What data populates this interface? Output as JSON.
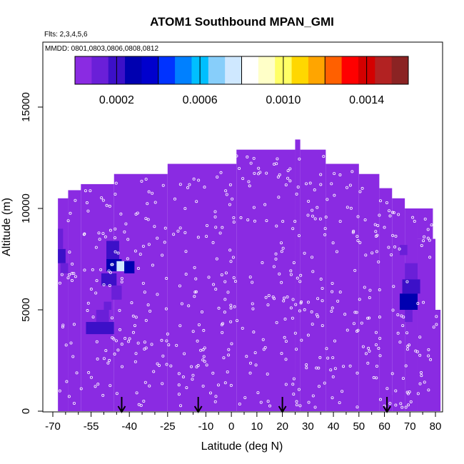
{
  "chart_data": {
    "type": "heatmap",
    "title": "ATOM1 Southbound MPAN_GMI",
    "subtitle_flights": "Flts: 2,3,4,5,6",
    "subtitle_dates": "MMDD: 0801,0803,0806,0808,0812",
    "xlabel": "Latitude (deg N)",
    "ylabel": "Altitude (m)",
    "xlim": [
      -70,
      85
    ],
    "ylim": [
      0,
      17500
    ],
    "xticks": [
      -70,
      -55,
      -40,
      -25,
      -10,
      0,
      10,
      20,
      30,
      40,
      50,
      60,
      70,
      80
    ],
    "xticklabels": [
      "-70",
      "-55",
      "-40",
      "-25",
      "-10",
      "0",
      "10",
      "20",
      "30",
      "40",
      "50",
      "60",
      "70",
      "80"
    ],
    "xminor": [
      -65,
      -60,
      -50,
      -45,
      -35,
      -30,
      -20,
      -15,
      -5,
      5,
      15,
      25,
      35,
      45,
      55,
      65,
      75,
      85
    ],
    "yticks": [
      0,
      5000,
      10000,
      15000
    ],
    "yticklabels": [
      "0",
      "5000",
      "10000",
      "15000"
    ],
    "colorbar": {
      "min": 0.0,
      "max": 0.0016,
      "ticks": [
        0.0002,
        0.0006,
        0.001,
        0.0014
      ],
      "ticklabels": [
        "0.0002",
        "0.0006",
        "0.0010",
        "0.0014"
      ],
      "gridlines": [
        0.0004,
        0.0008,
        0.0012
      ],
      "colors": [
        "#8a2be2",
        "#6a1fd8",
        "#3c10c8",
        "#0000b0",
        "#0000cd",
        "#0033ff",
        "#0080ff",
        "#00bfff",
        "#87cefa",
        "#cfe8ff",
        "#ffffff",
        "#ffffc8",
        "#ffff66",
        "#ffd700",
        "#ffa500",
        "#ff6000",
        "#ff0000",
        "#d40000",
        "#b22222",
        "#8b2323"
      ]
    },
    "background_value": 2e-05,
    "envelope": [
      {
        "lat": [
          -68,
          -64
        ],
        "top": 10500
      },
      {
        "lat": [
          -64,
          -59
        ],
        "top": 10900
      },
      {
        "lat": [
          -59,
          -46
        ],
        "top": 11200
      },
      {
        "lat": [
          -46,
          -25
        ],
        "top": 11700
      },
      {
        "lat": [
          -25,
          2
        ],
        "top": 12200
      },
      {
        "lat": [
          2,
          25
        ],
        "top": 12900
      },
      {
        "lat": [
          25,
          27
        ],
        "top": 13400
      },
      {
        "lat": [
          27,
          37
        ],
        "top": 12900
      },
      {
        "lat": [
          37,
          50
        ],
        "top": 12200
      },
      {
        "lat": [
          50,
          58
        ],
        "top": 11700
      },
      {
        "lat": [
          58,
          63
        ],
        "top": 11000
      },
      {
        "lat": [
          63,
          68
        ],
        "top": 10500
      },
      {
        "lat": [
          68,
          73
        ],
        "top": 10000
      }
    ],
    "envelope_right_edge": [
      {
        "alt": [
          8500,
          10000
        ],
        "lat": 79
      },
      {
        "alt": [
          5000,
          8500
        ],
        "lat": 80
      },
      {
        "alt": [
          0,
          5000
        ],
        "lat": 82
      }
    ],
    "cells": [
      {
        "lat": [
          -68,
          -65
        ],
        "alt": [
          7300,
          8000
        ],
        "value": 0.00018
      },
      {
        "lat": [
          -67,
          -64
        ],
        "alt": [
          6800,
          7300
        ],
        "value": 0.00012
      },
      {
        "lat": [
          -68,
          -66
        ],
        "alt": [
          8000,
          9000
        ],
        "value": 8e-05
      },
      {
        "lat": [
          -49,
          -44
        ],
        "alt": [
          7500,
          8400
        ],
        "value": 0.00022
      },
      {
        "lat": [
          -49,
          -43
        ],
        "alt": [
          6900,
          7500
        ],
        "value": 0.00028
      },
      {
        "lat": [
          -45,
          -40
        ],
        "alt": [
          6900,
          7400
        ],
        "value": 0.00075
      },
      {
        "lat": [
          -42,
          -38
        ],
        "alt": [
          6800,
          7400
        ],
        "value": 0.0003
      },
      {
        "lat": [
          -51,
          -45
        ],
        "alt": [
          6200,
          6800
        ],
        "value": 0.0002
      },
      {
        "lat": [
          -47,
          -43
        ],
        "alt": [
          5500,
          6200
        ],
        "value": 0.00012
      },
      {
        "lat": [
          -57,
          -46
        ],
        "alt": [
          3800,
          4400
        ],
        "value": 0.00018
      },
      {
        "lat": [
          -53,
          -48
        ],
        "alt": [
          4400,
          5000
        ],
        "value": 0.0001
      },
      {
        "lat": [
          -50,
          -47
        ],
        "alt": [
          5000,
          5400
        ],
        "value": 8e-05
      },
      {
        "lat": [
          68,
          73
        ],
        "alt": [
          6500,
          7300
        ],
        "value": 0.00012
      },
      {
        "lat": [
          67,
          74
        ],
        "alt": [
          5800,
          6500
        ],
        "value": 0.0002
      },
      {
        "lat": [
          66,
          73
        ],
        "alt": [
          5000,
          5800
        ],
        "value": 0.00028
      },
      {
        "lat": [
          68,
          71
        ],
        "alt": [
          4400,
          5000
        ],
        "value": 0.0001
      },
      {
        "lat": [
          66,
          69
        ],
        "alt": [
          7700,
          8200
        ],
        "value": 8e-05
      },
      {
        "lat": [
          -64,
          -60
        ],
        "alt": [
          1300,
          1700
        ],
        "value": 6e-05
      },
      {
        "lat": [
          58,
          63
        ],
        "alt": [
          400,
          800
        ],
        "value": 6e-05
      }
    ],
    "arrows_lat": [
      -43,
      -13,
      20,
      61
    ]
  }
}
